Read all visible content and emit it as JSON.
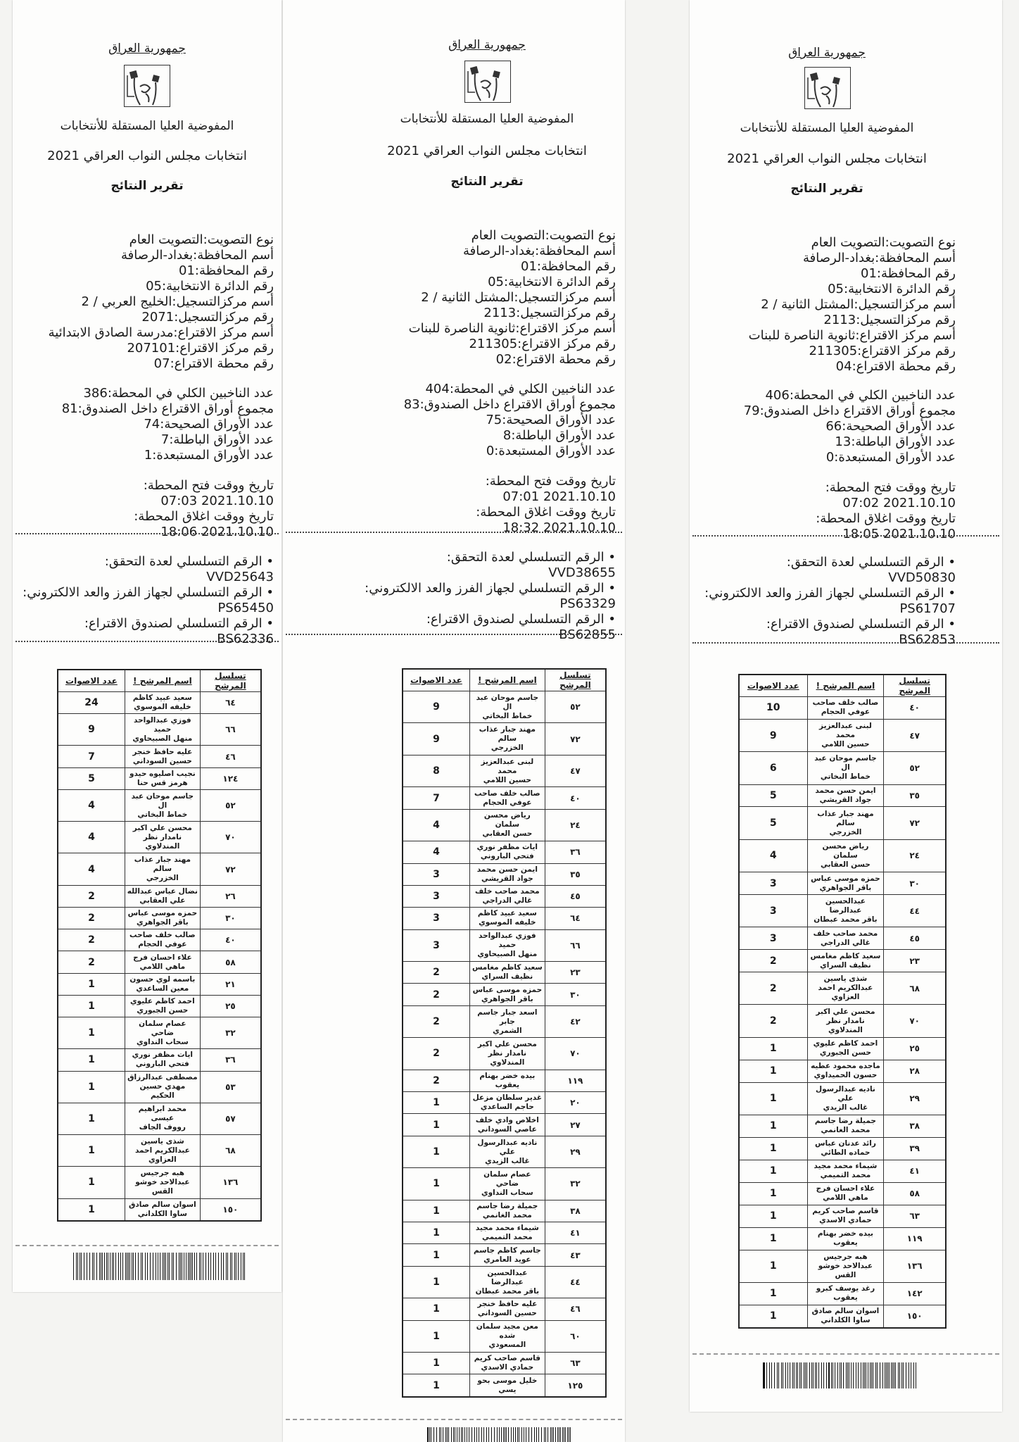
{
  "receipts": [
    {
      "republic": "جمهورية العراق",
      "commission": "المفوضية العليا المستقلة للأنتخابات",
      "election": "انتخابات مجلس النواب العراقي 2021",
      "report_title": "تقرير النتائج",
      "fields": [
        {
          "label": "نوع التصويت:",
          "value": "التصويت العام"
        },
        {
          "label": "أسم المحافظة:",
          "value": "بغداد-الرصافة"
        },
        {
          "label": "رقم المحافظة:",
          "value": "01"
        },
        {
          "label": "رقم الدائرة الانتخابية:",
          "value": "05"
        },
        {
          "label": "أسم مركزالتسجيل:",
          "value": "الخليج العربي / 2"
        },
        {
          "label": "رقم مركزالتسجيل:",
          "value": "2071"
        },
        {
          "label": "أسم مركز الاقتراع:",
          "value": "مدرسة الصادق الابتدائية"
        },
        {
          "label": "رقم مركز الاقتراع:",
          "value": "207101"
        },
        {
          "label": "رقم محطة الاقتراع:",
          "value": "07"
        }
      ],
      "counts": [
        {
          "label": "عدد الناخبين الكلي في المحطة:",
          "value": "386"
        },
        {
          "label": "مجموع أوراق الاقتراع داخل الصندوق:",
          "value": "81"
        },
        {
          "label": "عدد  الأوراق الصحيحة:",
          "value": "74"
        },
        {
          "label": "عدد الأوراق الباطلة:",
          "value": "7"
        },
        {
          "label": "عدد الأوراق المستبعدة:",
          "value": "1"
        }
      ],
      "times": [
        {
          "label": "تاريخ ووقت فتح المحطة:",
          "value": "2021.10.10 07:03"
        },
        {
          "label": "تاريخ ووقت اغلاق المحطة:",
          "value": "2021.10.10 18:06"
        }
      ],
      "serials": [
        {
          "label": "• الرقم التسلسلي لعدة التحقق:",
          "value": "VVD25643"
        },
        {
          "label": "• الرقم التسلسلي لجهاز الفرز والعد الالكتروني:",
          "value": "PS65450"
        },
        {
          "label": "• الرقم التسلسلي لصندوق الاقتراع:",
          "value": "BS62336"
        }
      ],
      "table_headers": [
        "تسلسل المرشح",
        "اسم المرشح !",
        "عدد الاصوات"
      ],
      "rows": [
        {
          "serial": "٦٤",
          "name": "سعيد عبيد كاظم\nخليفه الموسوي",
          "votes": "24"
        },
        {
          "serial": "٦٦",
          "name": "فوزي عبدالواحد حميد\nمنهل الصبيحاوي",
          "votes": "9"
        },
        {
          "serial": "٤٦",
          "name": "عليه حافظ خنجر\nحسين السوداني",
          "votes": "7"
        },
        {
          "serial": "١٢٤",
          "name": "نجيب اصليوه حيدو\nهرمز قس حنا",
          "votes": "5"
        },
        {
          "serial": "٥٢",
          "name": "جاسم موحان عبد ال\nخماط البخاتي",
          "votes": "4"
        },
        {
          "serial": "٧٠",
          "name": "محسن علي اكبر\nنامدار نظر المندلاوي",
          "votes": "4"
        },
        {
          "serial": "٧٢",
          "name": "مهند جبار عذاب سالم\nالخزرجي",
          "votes": "4"
        },
        {
          "serial": "٢٦",
          "name": "نضال عباس عبدالله\nعلي العقابي",
          "votes": "2"
        },
        {
          "serial": "٣٠",
          "name": "حمزه موسى عباس\nباقر الجواهري",
          "votes": "2"
        },
        {
          "serial": "٤٠",
          "name": "صالب خلف صاحب\nعوفي الحجام",
          "votes": "2"
        },
        {
          "serial": "٥٨",
          "name": "علاء احسان فرج\nماهي اللامي",
          "votes": "2"
        },
        {
          "serial": "٢١",
          "name": "باسمه لوي حسون\nمعين الساعدي",
          "votes": "1"
        },
        {
          "serial": "٢٥",
          "name": "احمد كاظم عليوي\nحسن الجبوري",
          "votes": "1"
        },
        {
          "serial": "٣٢",
          "name": "عصام سلمان ضاحي\nسحاب النداوي",
          "votes": "1"
        },
        {
          "serial": "٣٦",
          "name": "ايات مظفر نوري\nفتحي الباروني",
          "votes": "1"
        },
        {
          "serial": "٥٣",
          "name": "مصطفى عبدالرزاق\nمهدي حسين الحكيم",
          "votes": "1"
        },
        {
          "serial": "٥٧",
          "name": "محمد ابراهيم عيسى\nرووف الجاف",
          "votes": "1"
        },
        {
          "serial": "٦٨",
          "name": "شذى ياسين\nعبدالكريم احمد\nالعزاوي",
          "votes": "1"
        },
        {
          "serial": "١٣٦",
          "name": "هبه جرجيس\nعبدالاحد خوشو القس",
          "votes": "1"
        },
        {
          "serial": "١٥٠",
          "name": "اسوان سالم صادق\nساوا الكلداني",
          "votes": "1"
        }
      ]
    },
    {
      "republic": "جمهورية العراق",
      "commission": "المفوضية العليا المستقلة للأنتخابات",
      "election": "انتخابات مجلس النواب العراقي 2021",
      "report_title": "تقرير النتائج",
      "fields": [
        {
          "label": "نوع التصويت:",
          "value": "التصويت العام"
        },
        {
          "label": "أسم المحافظة:",
          "value": "بغداد-الرصافة"
        },
        {
          "label": "رقم المحافظة:",
          "value": "01"
        },
        {
          "label": "رقم الدائرة الانتخابية:",
          "value": "05"
        },
        {
          "label": "أسم مركزالتسجيل:",
          "value": "المشتل الثانية / 2"
        },
        {
          "label": "رقم مركزالتسجيل:",
          "value": "2113"
        },
        {
          "label": "أسم مركز الاقتراع:",
          "value": "ثانوية الناصرة للبنات"
        },
        {
          "label": "رقم مركز الاقتراع:",
          "value": "211305"
        },
        {
          "label": "رقم محطة الاقتراع:",
          "value": "02"
        }
      ],
      "counts": [
        {
          "label": "عدد الناخبين الكلي في المحطة:",
          "value": "404"
        },
        {
          "label": "مجموع أوراق الاقتراع داخل الصندوق:",
          "value": "83"
        },
        {
          "label": "عدد  الأوراق الصحيحة:",
          "value": "75"
        },
        {
          "label": "عدد الأوراق الباطلة:",
          "value": "8"
        },
        {
          "label": "عدد الأوراق المستبعدة:",
          "value": "0"
        }
      ],
      "times": [
        {
          "label": "تاريخ ووقت فتح المحطة:",
          "value": "2021.10.10 07:01"
        },
        {
          "label": "تاريخ ووقت اغلاق المحطة:",
          "value": "2021.10.10 18:32"
        }
      ],
      "serials": [
        {
          "label": "• الرقم التسلسلي لعدة التحقق:",
          "value": "VVD38655"
        },
        {
          "label": "• الرقم التسلسلي لجهاز الفرز والعد الالكتروني:",
          "value": "PS63329"
        },
        {
          "label": "• الرقم التسلسلي لصندوق الاقتراع:",
          "value": "BS62855"
        }
      ],
      "table_headers": [
        "تسلسل المرشح",
        "اسم المرشح !",
        "عدد الاصوات"
      ],
      "rows": [
        {
          "serial": "٥٢",
          "name": "جاسم موحان عبد ال\nخماط البخاتي",
          "votes": "9"
        },
        {
          "serial": "٧٢",
          "name": "مهند جبار عذاب سالم\nالخزرجي",
          "votes": "9"
        },
        {
          "serial": "٤٧",
          "name": "لبنى عبدالعزيز محمد\nحسين اللامي",
          "votes": "8"
        },
        {
          "serial": "٤٠",
          "name": "صالب خلف صاحب\nعوفي الحجام",
          "votes": "7"
        },
        {
          "serial": "٢٤",
          "name": "رياض محسن سلمان\nحسن العقابي",
          "votes": "4"
        },
        {
          "serial": "٣٦",
          "name": "ايات مظفر نوري\nفتحي الباروني",
          "votes": "4"
        },
        {
          "serial": "٣٥",
          "name": "ايمن حسن محمد\nجواد القريشي",
          "votes": "3"
        },
        {
          "serial": "٤٥",
          "name": "محمد صاحب خلف\nغالي الدراجي",
          "votes": "3"
        },
        {
          "serial": "٦٤",
          "name": "سعيد عبيد كاظم\nخليفه الموسوي",
          "votes": "3"
        },
        {
          "serial": "٦٦",
          "name": "فوزي عبدالواحد حميد\nمنهل الصبيحاوي",
          "votes": "3"
        },
        {
          "serial": "٢٣",
          "name": "سعيد كاظم مغامس\nنظيف السراي",
          "votes": "2"
        },
        {
          "serial": "٣٠",
          "name": "حمزه موسى عباس\nباقر الجواهري",
          "votes": "2"
        },
        {
          "serial": "٤٢",
          "name": "اسعد جبار جاسم جابر\nالشمري",
          "votes": "2"
        },
        {
          "serial": "٧٠",
          "name": "محسن علي اكبر\nنامدار نظر المندلاوي",
          "votes": "2"
        },
        {
          "serial": "١١٩",
          "name": "بيده خضر بهنام\nيعقوب",
          "votes": "2"
        },
        {
          "serial": "٢٠",
          "name": "غدير سلطان مزعل\nحاجم الساعدي",
          "votes": "1"
        },
        {
          "serial": "٢٧",
          "name": "اخلاص وادي خلف\nعاصي السوداني",
          "votes": "1"
        },
        {
          "serial": "٢٩",
          "name": "ناديه عبدالرسول علي\nغالب الزيدي",
          "votes": "1"
        },
        {
          "serial": "٣٢",
          "name": "عصام سلمان ضاحي\nسحاب النداوي",
          "votes": "1"
        },
        {
          "serial": "٣٨",
          "name": "جميلة رضا جاسم\nمحمد الغانمي",
          "votes": "1"
        },
        {
          "serial": "٤١",
          "name": "شيماء محمد مجيد\nمحمد التميمي",
          "votes": "1"
        },
        {
          "serial": "٤٣",
          "name": "جاسم كاظم جاسم\nعويد العامري",
          "votes": "1"
        },
        {
          "serial": "٤٤",
          "name": "عبدالحسين عبدالرضا\nباقر محمد عبطان",
          "votes": "1"
        },
        {
          "serial": "٤٦",
          "name": "عليه حافظ خنجر\nحسين السوداني",
          "votes": "1"
        },
        {
          "serial": "٦٠",
          "name": "معن مجيد سلمان شده\nالمسعودي",
          "votes": "1"
        },
        {
          "serial": "٦٣",
          "name": "قاسم صاحب كريم\nحمادي الاسدي",
          "votes": "1"
        },
        {
          "serial": "١٢٥",
          "name": "خليل موسى بحو\nيسي",
          "votes": "1"
        }
      ]
    },
    {
      "republic": "جمهورية العراق",
      "commission": "المفوضية العليا المستقلة للأنتخابات",
      "election": "انتخابات مجلس النواب العراقي 2021",
      "report_title": "تقرير النتائج",
      "fields": [
        {
          "label": "نوع التصويت:",
          "value": "التصويت العام"
        },
        {
          "label": "أسم المحافظة:",
          "value": "بغداد-الرصافة"
        },
        {
          "label": "رقم المحافظة:",
          "value": "01"
        },
        {
          "label": "رقم الدائرة الانتخابية:",
          "value": "05"
        },
        {
          "label": "أسم مركزالتسجيل:",
          "value": "المشتل الثانية / 2"
        },
        {
          "label": "رقم مركزالتسجيل:",
          "value": "2113"
        },
        {
          "label": "أسم مركز الاقتراع:",
          "value": "ثانوية الناصرة للبنات"
        },
        {
          "label": "رقم مركز الاقتراع:",
          "value": "211305"
        },
        {
          "label": "رقم محطة الاقتراع:",
          "value": "04"
        }
      ],
      "counts": [
        {
          "label": "عدد الناخبين الكلي في المحطة:",
          "value": "406"
        },
        {
          "label": "مجموع أوراق الاقتراع داخل الصندوق:",
          "value": "79"
        },
        {
          "label": "عدد  الأوراق الصحيحة:",
          "value": "66"
        },
        {
          "label": "عدد الأوراق الباطلة:",
          "value": "13"
        },
        {
          "label": "عدد الأوراق المستبعدة:",
          "value": "0"
        }
      ],
      "times": [
        {
          "label": "تاريخ ووقت فتح المحطة:",
          "value": "2021.10.10 07:02"
        },
        {
          "label": "تاريخ ووقت اغلاق المحطة:",
          "value": "2021.10.10 18:05"
        }
      ],
      "serials": [
        {
          "label": "• الرقم التسلسلي لعدة التحقق:",
          "value": "VVD50830"
        },
        {
          "label": "• الرقم التسلسلي لجهاز الفرز والعد الالكتروني:",
          "value": "PS61707"
        },
        {
          "label": "• الرقم التسلسلي لصندوق الاقتراع:",
          "value": "BS62853"
        }
      ],
      "table_headers": [
        "تسلسل المرشح",
        "اسم المرشح !",
        "عدد الاصوات"
      ],
      "rows": [
        {
          "serial": "٤٠",
          "name": "صالب خلف صاحب\nعوفي الحجام",
          "votes": "10"
        },
        {
          "serial": "٤٧",
          "name": "لبنى عبدالعزيز محمد\nحسين اللامي",
          "votes": "9"
        },
        {
          "serial": "٥٢",
          "name": "جاسم موحان عبد ال\nخماط البخاتي",
          "votes": "6"
        },
        {
          "serial": "٣٥",
          "name": "ايمن حسن محمد\nجواد القريشي",
          "votes": "5"
        },
        {
          "serial": "٧٢",
          "name": "مهند جبار عذاب سالم\nالخزرجي",
          "votes": "5"
        },
        {
          "serial": "٢٤",
          "name": "رياض محسن سلمان\nحسن العقابي",
          "votes": "4"
        },
        {
          "serial": "٣٠",
          "name": "حمزه موسى عباس\nباقر الجواهري",
          "votes": "3"
        },
        {
          "serial": "٤٤",
          "name": "عبدالحسين عبدالرضا\nباقر محمد عبطان",
          "votes": "3"
        },
        {
          "serial": "٤٥",
          "name": "محمد صاحب خلف\nغالي الدراجي",
          "votes": "3"
        },
        {
          "serial": "٢٣",
          "name": "سعيد كاظم مغامس\nنظيف السراي",
          "votes": "2"
        },
        {
          "serial": "٦٨",
          "name": "شذى ياسين\nعبدالكريم احمد\nالعزاوي",
          "votes": "2"
        },
        {
          "serial": "٧٠",
          "name": "محسن علي اكبر\nنامدار نظر المندلاوي",
          "votes": "2"
        },
        {
          "serial": "٢٥",
          "name": "احمد كاظم عليوي\nحسن الجبوري",
          "votes": "1"
        },
        {
          "serial": "٢٨",
          "name": "ماجده محمود عطيه\nحسون الحميداوي",
          "votes": "1"
        },
        {
          "serial": "٢٩",
          "name": "ناديه عبدالرسول علي\nغالب الزيدي",
          "votes": "1"
        },
        {
          "serial": "٣٨",
          "name": "جميلة رضا جاسم\nمحمد الغانمي",
          "votes": "1"
        },
        {
          "serial": "٣٩",
          "name": "رائد عدنان عباس\nحماده الطائي",
          "votes": "1"
        },
        {
          "serial": "٤١",
          "name": "شيماء محمد مجيد\nمحمد التميمي",
          "votes": "1"
        },
        {
          "serial": "٥٨",
          "name": "علاء احسان فرج\nماهي اللامي",
          "votes": "1"
        },
        {
          "serial": "٦٣",
          "name": "قاسم صاحب كريم\nحمادي الاسدي",
          "votes": "1"
        },
        {
          "serial": "١١٩",
          "name": "بيده خضر بهنام\nيعقوب",
          "votes": "1"
        },
        {
          "serial": "١٣٦",
          "name": "هبه جرجيس\nعبدالاحد خوشو القس",
          "votes": "1"
        },
        {
          "serial": "١٤٢",
          "name": "رغد يوسف كبرو\nيعقوب",
          "votes": "1"
        },
        {
          "serial": "١٥٠",
          "name": "اسوان سالم صادق\nساوا الكلداني",
          "votes": "1"
        }
      ]
    }
  ]
}
